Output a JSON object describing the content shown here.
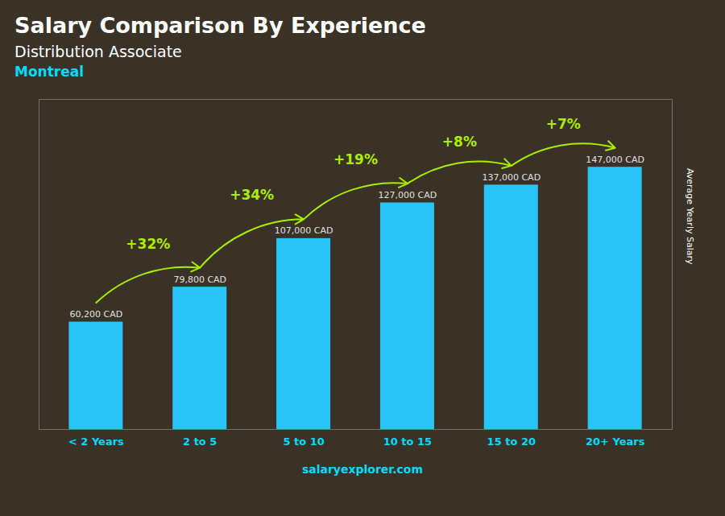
{
  "chart_data": {
    "type": "bar",
    "title": "Salary Comparison By Experience",
    "subtitle": [
      "Distribution Associate",
      "Montreal"
    ],
    "categories": [
      "< 2 Years",
      "2 to 5",
      "5 to 10",
      "10 to 15",
      "15 to 20",
      "20+ Years"
    ],
    "values": [
      60200,
      79800,
      107000,
      127000,
      137000,
      147000
    ],
    "value_labels": [
      "60,200 CAD",
      "79,800 CAD",
      "107,000 CAD",
      "127,000 CAD",
      "137,000 CAD",
      "147,000 CAD"
    ],
    "data_labels": true,
    "color": "#29C5F6",
    "ylabel": "Average Yearly Salary",
    "ylim": [
      0,
      185000
    ],
    "tick_labels": "x",
    "grid": false,
    "annotations": [
      "+32%",
      "+34%",
      "+19%",
      "+8%",
      "+7%"
    ],
    "caption": "salaryexplorer.com"
  }
}
